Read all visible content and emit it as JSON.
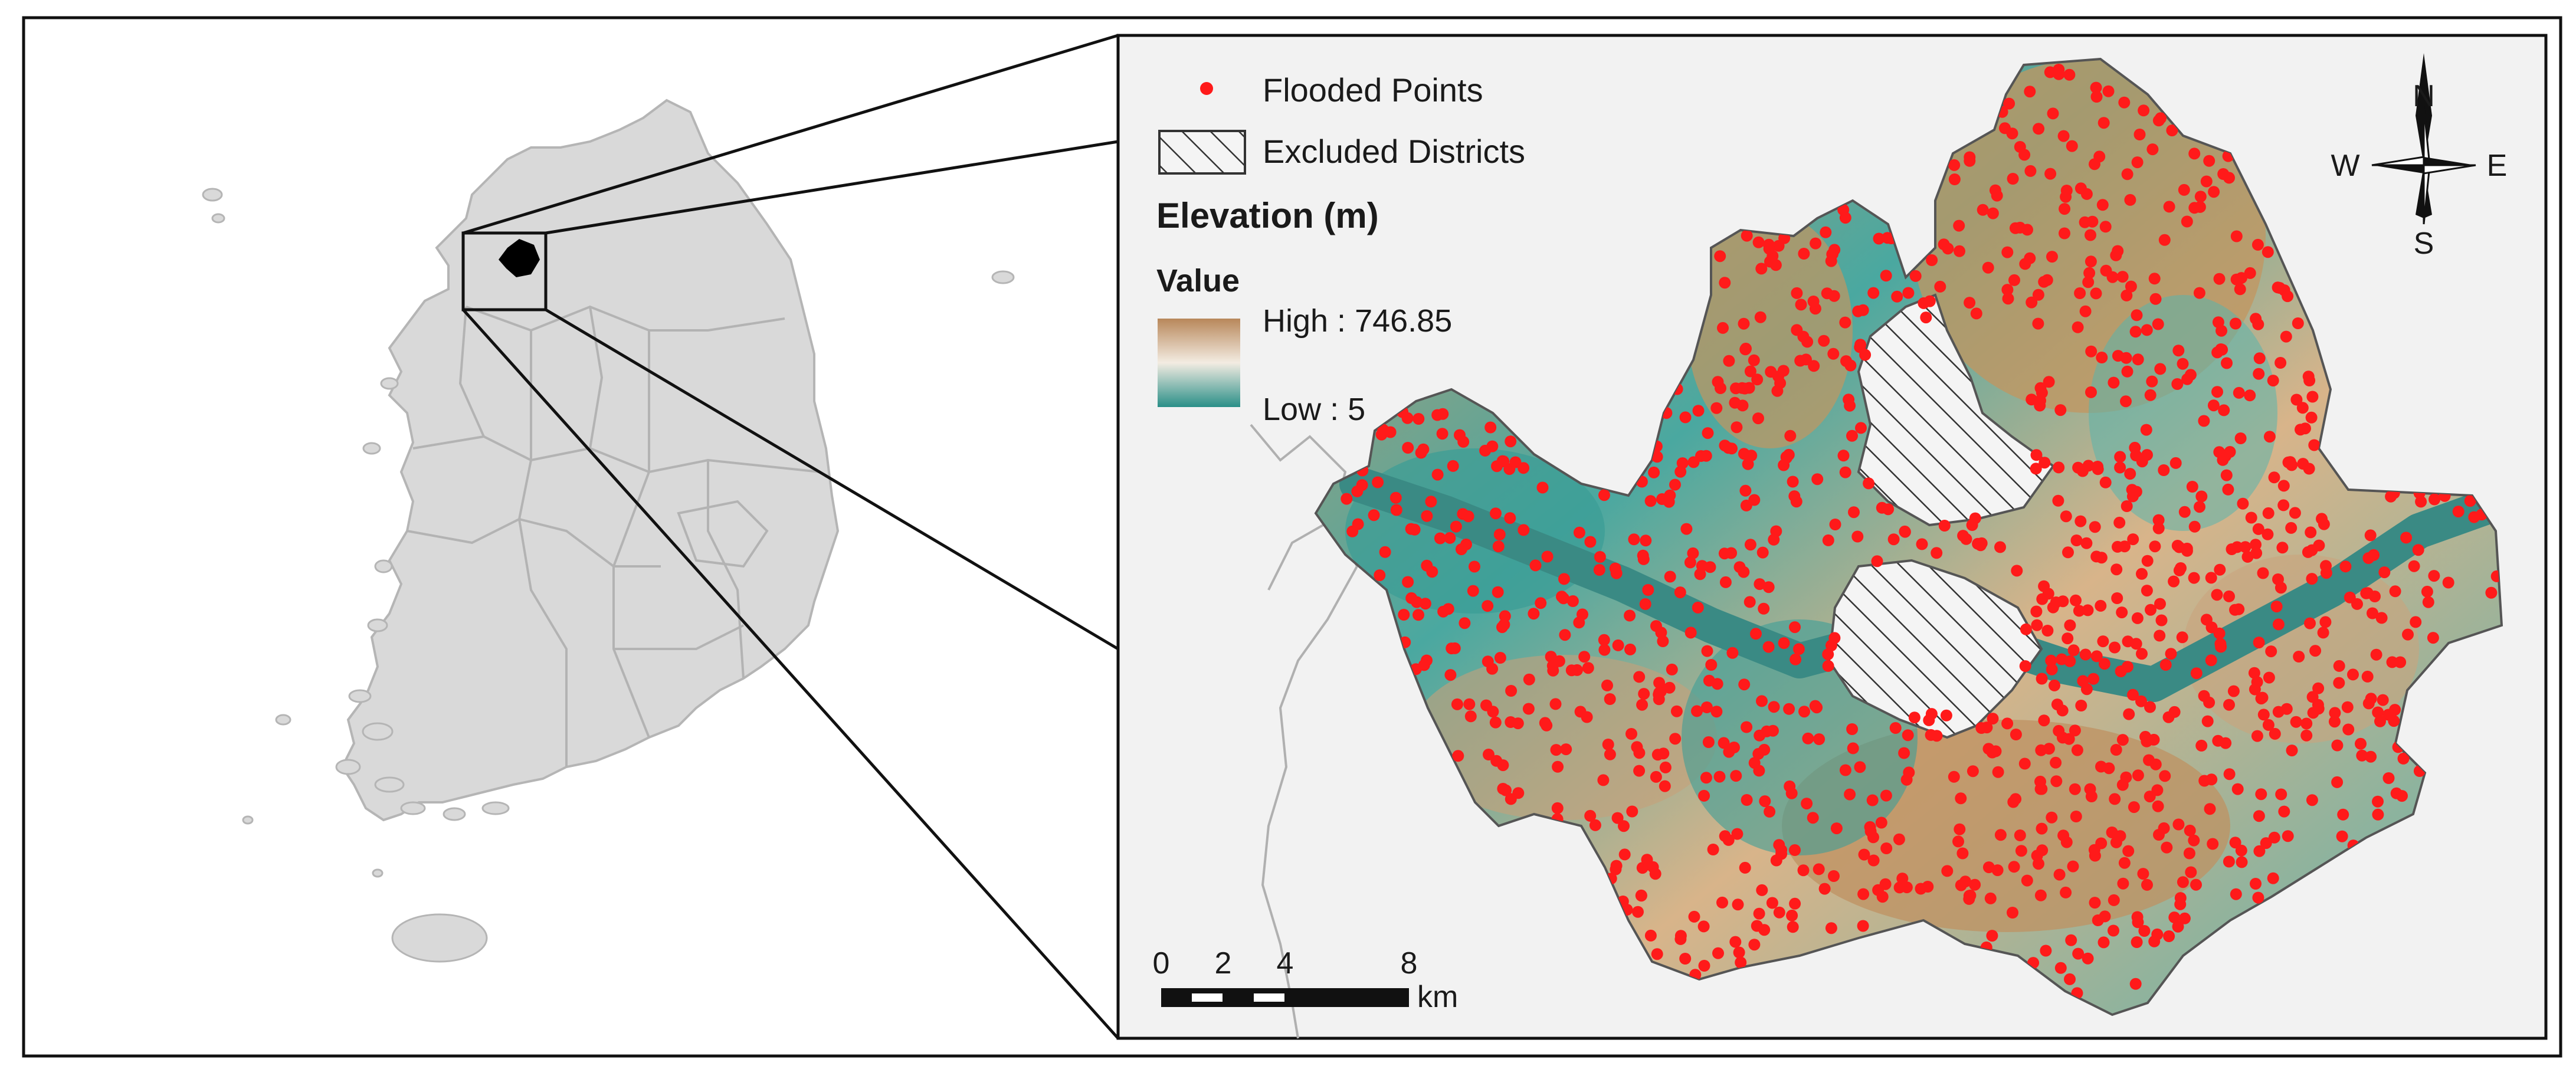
{
  "legend": {
    "flooded_label": "Flooded Points",
    "excluded_label": "Excluded Districts",
    "elevation_title": "Elevation (m)",
    "value_title": "Value",
    "high_label": "High : 746.85",
    "low_label": "Low : 5"
  },
  "compass": {
    "n": "N",
    "s": "S",
    "e": "E",
    "w": "W"
  },
  "scalebar": {
    "ticks": [
      "0",
      "2",
      "4",
      "8"
    ],
    "unit": "km"
  },
  "colors": {
    "flooded_point": "#ff1a1a",
    "land_gray": "#d9d9d9",
    "river": "#3a8a84",
    "elev_high": "#b8875a",
    "elev_mid": "#f3ece2",
    "elev_low": "#2a8f88"
  }
}
